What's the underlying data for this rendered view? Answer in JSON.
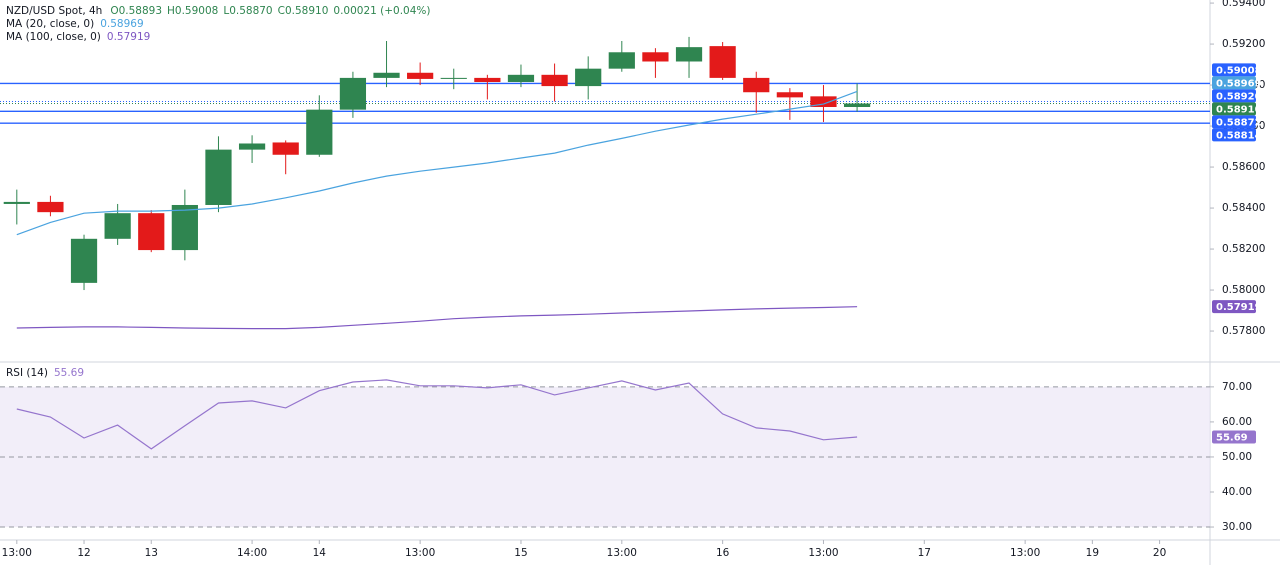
{
  "chart_data": [
    {
      "type": "candlestick",
      "title": "NZD/USD Spot, 4h",
      "ohlc_labels": [
        "O0.58893",
        "H0.59008",
        "L0.58870",
        "C0.58910",
        "0.00021 (+0.04%)"
      ],
      "x": [
        0,
        1,
        2,
        3,
        4,
        5,
        6,
        7,
        8,
        9,
        10,
        11,
        12,
        13,
        14,
        15,
        16,
        17,
        18,
        19,
        20,
        21,
        22,
        23,
        24,
        25
      ],
      "xlim": [
        -0.5,
        35.5
      ],
      "xticks": [
        {
          "value": 0,
          "label": "13:00"
        },
        {
          "value": 2,
          "label": "12"
        },
        {
          "value": 4,
          "label": "13"
        },
        {
          "value": 7,
          "label": "14:00"
        },
        {
          "value": 9,
          "label": "14"
        },
        {
          "value": 12,
          "label": "13:00"
        },
        {
          "value": 15,
          "label": "15"
        },
        {
          "value": 18,
          "label": "13:00"
        },
        {
          "value": 21,
          "label": "16"
        },
        {
          "value": 24,
          "label": "13:00"
        },
        {
          "value": 27,
          "label": "17"
        },
        {
          "value": 30,
          "label": "13:00"
        },
        {
          "value": 32,
          "label": "19"
        },
        {
          "value": 34,
          "label": "20"
        }
      ],
      "open": [
        0.5842,
        0.5843,
        0.58035,
        0.5825,
        0.58375,
        0.58195,
        0.58415,
        0.58685,
        0.5872,
        0.5866,
        0.5888,
        0.59035,
        0.5906,
        0.5903,
        0.59035,
        0.59015,
        0.5905,
        0.58995,
        0.5908,
        0.5916,
        0.59115,
        0.5919,
        0.59035,
        0.58965,
        0.58945,
        0.58893
      ],
      "high": [
        0.5849,
        0.5846,
        0.5827,
        0.5842,
        0.5839,
        0.5849,
        0.5875,
        0.58755,
        0.5873,
        0.5895,
        0.59065,
        0.59215,
        0.5911,
        0.5908,
        0.5905,
        0.591,
        0.59105,
        0.5914,
        0.59215,
        0.5918,
        0.59235,
        0.5921,
        0.59065,
        0.58985,
        0.59,
        0.59008
      ],
      "low": [
        0.5832,
        0.5836,
        0.58,
        0.5822,
        0.58185,
        0.58145,
        0.5838,
        0.5862,
        0.58565,
        0.5865,
        0.5884,
        0.5899,
        0.59,
        0.5898,
        0.5893,
        0.5899,
        0.5892,
        0.5893,
        0.59065,
        0.59035,
        0.59035,
        0.59025,
        0.58865,
        0.5883,
        0.5882,
        0.5887
      ],
      "close": [
        0.5843,
        0.5838,
        0.5825,
        0.58375,
        0.58195,
        0.58415,
        0.58685,
        0.58715,
        0.5866,
        0.5888,
        0.59035,
        0.5906,
        0.5903,
        0.59035,
        0.59015,
        0.5905,
        0.58995,
        0.5908,
        0.5916,
        0.59115,
        0.59185,
        0.59035,
        0.58965,
        0.5894,
        0.58893,
        0.5891
      ],
      "up_color": "#2f8550",
      "down_color": "#e31a1a",
      "series": [
        {
          "name": "MA (20, close, 0)",
          "value_label": "0.58969",
          "color": "#4aa3df",
          "values": [
            0.5827,
            0.5833,
            0.58375,
            0.58385,
            0.58385,
            0.5839,
            0.584,
            0.5842,
            0.5845,
            0.58483,
            0.58522,
            0.58556,
            0.5858,
            0.586,
            0.5862,
            0.58644,
            0.58668,
            0.58707,
            0.5874,
            0.58775,
            0.58805,
            0.58834,
            0.58858,
            0.58883,
            0.58907,
            0.58969
          ]
        },
        {
          "name": "MA (100, close, 0)",
          "value_label": "0.57919",
          "color": "#7e57c2",
          "values": [
            0.57815,
            0.57818,
            0.5782,
            0.5782,
            0.57818,
            0.57815,
            0.57813,
            0.57812,
            0.57812,
            0.57818,
            0.57828,
            0.57838,
            0.57848,
            0.5786,
            0.57868,
            0.57874,
            0.57878,
            0.57882,
            0.57888,
            0.57893,
            0.57898,
            0.57903,
            0.57908,
            0.57912,
            0.57915,
            0.57919
          ]
        }
      ],
      "price_lines": [
        {
          "value": 0.59008,
          "label": "0.59008",
          "color": "#2962ff",
          "style": "solid"
        },
        {
          "value": 0.5892,
          "label": "0.58920",
          "color": "#2962ff",
          "style": "dotted"
        },
        {
          "value": 0.5891,
          "label": "0.58910",
          "color": "#2f8550",
          "style": "dotted"
        },
        {
          "value": 0.58872,
          "label": "0.58872",
          "color": "#2962ff",
          "style": "solid"
        },
        {
          "value": 0.58814,
          "label": "0.58814",
          "color": "#2962ff",
          "style": "solid"
        }
      ],
      "ylim": [
        0.57649,
        0.59415
      ],
      "yticks": [
        {
          "value": 0.578,
          "label": "0.57800"
        },
        {
          "value": 0.58,
          "label": "0.58000"
        },
        {
          "value": 0.582,
          "label": "0.58200"
        },
        {
          "value": 0.584,
          "label": "0.58400"
        },
        {
          "value": 0.586,
          "label": "0.58600"
        },
        {
          "value": 0.588,
          "label": "0.58800"
        },
        {
          "value": 0.59,
          "label": "0.59000"
        },
        {
          "value": 0.592,
          "label": "0.59200"
        },
        {
          "value": 0.594,
          "label": "0.59400"
        }
      ]
    },
    {
      "type": "line",
      "series": [
        {
          "name": "RSI (14)",
          "value_label": "55.69",
          "color": "#9575cd",
          "values": [
            63.7,
            61.4,
            55.4,
            59.1,
            52.3,
            58.9,
            65.4,
            66.0,
            64.0,
            68.9,
            71.4,
            72.0,
            70.3,
            70.3,
            69.7,
            70.6,
            67.7,
            69.7,
            71.7,
            69.1,
            71.1,
            62.3,
            58.3,
            57.4,
            54.9,
            55.69
          ]
        }
      ],
      "band": [
        30,
        70
      ],
      "levels": [
        30,
        50,
        70
      ],
      "ylim": [
        26.3,
        77.1
      ],
      "yticks": [
        {
          "value": 30,
          "label": "30.00"
        },
        {
          "value": 40,
          "label": "40.00"
        },
        {
          "value": 50,
          "label": "50.00"
        },
        {
          "value": 60,
          "label": "60.00"
        },
        {
          "value": 70,
          "label": "70.00"
        }
      ]
    }
  ]
}
